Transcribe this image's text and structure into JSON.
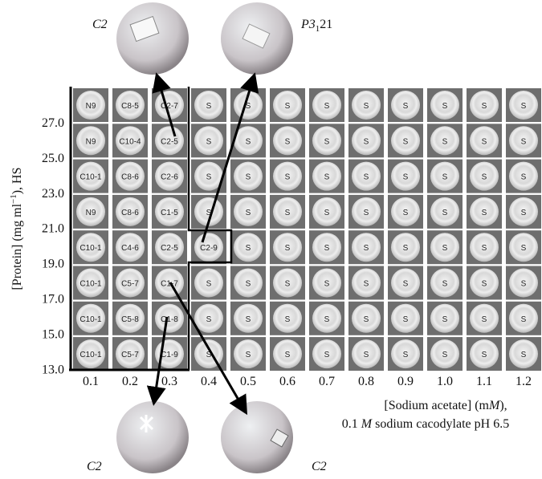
{
  "y_axis": {
    "label": [
      "[Protein] (mg ml",
      "−1",
      "), HS"
    ],
    "ticks": [
      "27.0",
      "25.0",
      "23.0",
      "21.0",
      "19.0",
      "17.0",
      "15.0",
      "13.0"
    ]
  },
  "x_axis": {
    "ticks": [
      "0.1",
      "0.2",
      "0.3",
      "0.4",
      "0.5",
      "0.6",
      "0.7",
      "0.8",
      "0.9",
      "1.0",
      "1.1",
      "1.2"
    ],
    "label_line1": [
      "[Sodium acetate] (m",
      "M",
      "),"
    ],
    "label_line2": [
      "0.1 ",
      "M",
      " sodium cacodylate pH 6.5"
    ]
  },
  "grid": {
    "rows": [
      [
        "N9",
        "C8-5",
        "C2-7",
        "S",
        "S",
        "S",
        "S",
        "S",
        "S",
        "S",
        "S",
        "S"
      ],
      [
        "N9",
        "C10-4",
        "C2-5",
        "S",
        "S",
        "S",
        "S",
        "S",
        "S",
        "S",
        "S",
        "S"
      ],
      [
        "C10-1",
        "C8-6",
        "C2-6",
        "S",
        "S",
        "S",
        "S",
        "S",
        "S",
        "S",
        "S",
        "S"
      ],
      [
        "N9",
        "C8-6",
        "C1-5",
        "S",
        "S",
        "S",
        "S",
        "S",
        "S",
        "S",
        "S",
        "S"
      ],
      [
        "C10-1",
        "C4-6",
        "C2-5",
        "C2-9",
        "S",
        "S",
        "S",
        "S",
        "S",
        "S",
        "S",
        "S"
      ],
      [
        "C10-1",
        "C5-7",
        "C1-7",
        "S",
        "S",
        "S",
        "S",
        "S",
        "S",
        "S",
        "S",
        "S"
      ],
      [
        "C10-1",
        "C5-8",
        "C1-8",
        "S",
        "S",
        "S",
        "S",
        "S",
        "S",
        "S",
        "S",
        "S"
      ],
      [
        "C10-1",
        "C5-7",
        "C1-9",
        "S",
        "S",
        "S",
        "S",
        "S",
        "S",
        "S",
        "S",
        "S"
      ]
    ]
  },
  "callouts": [
    {
      "label": [
        "C2"
      ]
    },
    {
      "label": [
        "P3",
        "1",
        "21"
      ]
    },
    {
      "label": [
        "C2"
      ]
    },
    {
      "label": [
        "C2"
      ]
    }
  ]
}
